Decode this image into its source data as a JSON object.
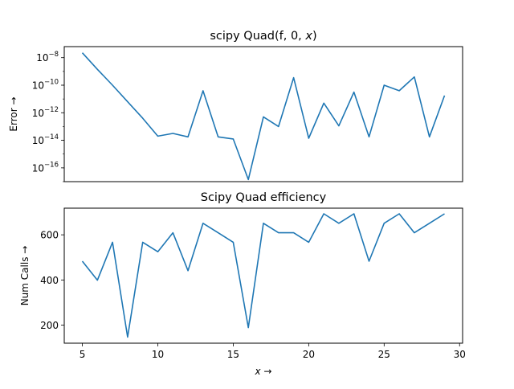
{
  "chart_data": [
    {
      "type": "line",
      "title": "scipy Quad(f, 0, x)",
      "title_parts": {
        "main": "scipy Quad(f, 0, ",
        "var": "x",
        "close": ")"
      },
      "xlabel": "",
      "ylabel": "Error →",
      "yscale": "log",
      "xlim": [
        3.8,
        30.2
      ],
      "ylim_log10": [
        -17,
        -7.2
      ],
      "ytick_exponents": [
        -8,
        -10,
        -12,
        -14,
        -16
      ],
      "ytick_base": "10",
      "line_color": "#1f77b4",
      "series": [
        {
          "x": [
            5,
            6,
            7,
            8,
            9,
            10,
            11,
            12,
            13,
            14,
            15,
            16,
            17,
            18,
            19,
            20,
            21,
            22,
            23,
            24,
            25,
            26,
            27,
            28,
            29
          ],
          "log10_values": [
            -7.65,
            -8.85,
            -10.0,
            -11.2,
            -12.4,
            -13.7,
            -13.5,
            -13.75,
            -10.4,
            -13.75,
            -13.9,
            -16.85,
            -12.3,
            -13.0,
            -9.45,
            -13.85,
            -11.3,
            -12.95,
            -10.5,
            -13.75,
            -10.0,
            -10.4,
            -9.4,
            -13.75,
            -10.75
          ]
        }
      ]
    },
    {
      "type": "line",
      "title": "Scipy Quad efficiency",
      "xlabel": "x →",
      "xlabel_parts": {
        "var": "x",
        "arrow": " →"
      },
      "ylabel": "Num Calls →",
      "yscale": "linear",
      "xlim": [
        3.8,
        30.2
      ],
      "ylim": [
        120,
        718
      ],
      "yticks": [
        200,
        400,
        600
      ],
      "xticks": [
        5,
        10,
        15,
        20,
        25,
        30
      ],
      "line_color": "#1f77b4",
      "series": [
        {
          "x": [
            5,
            6,
            7,
            8,
            9,
            10,
            11,
            12,
            13,
            14,
            15,
            16,
            17,
            18,
            19,
            20,
            21,
            22,
            23,
            24,
            25,
            26,
            27,
            28,
            29
          ],
          "values": [
            483,
            399,
            567,
            147,
            567,
            525,
            609,
            441,
            651,
            609,
            567,
            189,
            651,
            609,
            609,
            567,
            693,
            651,
            693,
            483,
            651,
            693,
            609,
            651,
            693
          ]
        }
      ]
    }
  ]
}
